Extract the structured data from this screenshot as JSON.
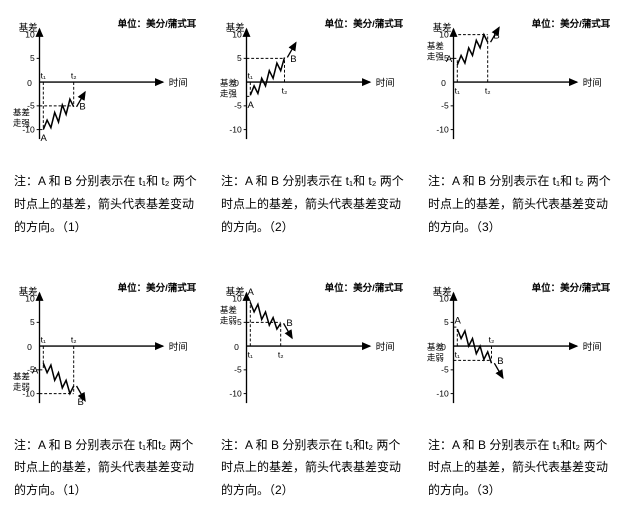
{
  "labels": {
    "unit": "单位：美分/蒲式耳",
    "yaxis": "基差",
    "xaxis": "时间",
    "strong": "基差走强",
    "weak": "基差走弱"
  },
  "axis": {
    "ticks": [
      10,
      5,
      0,
      -5,
      -10
    ],
    "tick_labels_top": [
      "10",
      "5"
    ],
    "tick_labels_bot": [
      "-5",
      "-10"
    ],
    "color": "#000000",
    "grid_color": "#000000",
    "background": "#ffffff",
    "font_size": 10,
    "unit_font_size": 10
  },
  "style": {
    "line_width": 1.6,
    "dash": "3 2",
    "arrow_size": 6
  },
  "charts": [
    {
      "id": "c1",
      "type": "line",
      "row": 0,
      "col": 0,
      "trend": "strong",
      "trend_label_side": "left-bottom",
      "A": {
        "t": 1,
        "y": -10,
        "label": "A",
        "label_pos": "below"
      },
      "B": {
        "t": 2,
        "y": -5,
        "label": "B",
        "label_pos": "right"
      },
      "t_labels": [
        "t₁",
        "t₂"
      ],
      "curve_points": [
        [
          34,
          118
        ],
        [
          38,
          108
        ],
        [
          42,
          116
        ],
        [
          46,
          100
        ],
        [
          50,
          110
        ],
        [
          54,
          92
        ],
        [
          58,
          102
        ],
        [
          62,
          86
        ],
        [
          66,
          94
        ]
      ],
      "arrow_angle": -60,
      "caption": "注：A 和 B 分别表示在 t₁和 t₂ 两个时点上的基差，箭头代表基差变动的方向。（1）"
    },
    {
      "id": "c2",
      "type": "line",
      "row": 0,
      "col": 1,
      "trend": "strong",
      "trend_label_side": "left-mid",
      "A": {
        "t": 1,
        "y": -3,
        "label": "A",
        "label_pos": "below"
      },
      "B": {
        "t": 2,
        "y": 5,
        "label": "B",
        "label_pos": "right"
      },
      "t_labels": [
        "t₁",
        "t₂"
      ],
      "curve_points": [
        [
          34,
          82
        ],
        [
          38,
          72
        ],
        [
          42,
          80
        ],
        [
          46,
          64
        ],
        [
          50,
          72
        ],
        [
          54,
          56
        ],
        [
          58,
          64
        ],
        [
          62,
          48
        ],
        [
          66,
          56
        ],
        [
          70,
          42
        ]
      ],
      "arrow_angle": -60,
      "caption": "注：A 和 B 分别表示在 t₁和 t₂ 两个时点上的基差，箭头代表基差变动的方向。（2）"
    },
    {
      "id": "c3",
      "type": "line",
      "row": 0,
      "col": 2,
      "trend": "strong",
      "trend_label_side": "left-top",
      "A": {
        "t": 1,
        "y": 5,
        "label": "A",
        "label_pos": "left"
      },
      "B": {
        "t": 2,
        "y": 10,
        "label": "B",
        "label_pos": "right"
      },
      "t_labels": [
        "t₁",
        "t₂"
      ],
      "curve_points": [
        [
          34,
          50
        ],
        [
          38,
          40
        ],
        [
          42,
          48
        ],
        [
          46,
          32
        ],
        [
          50,
          40
        ],
        [
          54,
          24
        ],
        [
          58,
          32
        ],
        [
          62,
          18
        ],
        [
          66,
          26
        ]
      ],
      "arrow_angle": -60,
      "caption": "注：A 和 B 分别表示在 t₁和 t₂ 两个时点上的基差，箭头代表基差变动的方向。（3）"
    },
    {
      "id": "c4",
      "type": "line",
      "row": 1,
      "col": 0,
      "trend": "weak",
      "trend_label_side": "left-bottom",
      "A": {
        "t": 1,
        "y": -5,
        "label": "A",
        "label_pos": "left"
      },
      "B": {
        "t": 2,
        "y": -10,
        "label": "B",
        "label_pos": "below-right"
      },
      "t_labels": [
        "t₁",
        "t₂"
      ],
      "curve_points": [
        [
          34,
          86
        ],
        [
          38,
          96
        ],
        [
          42,
          88
        ],
        [
          46,
          104
        ],
        [
          50,
          96
        ],
        [
          54,
          112
        ],
        [
          58,
          104
        ],
        [
          62,
          118
        ],
        [
          66,
          110
        ]
      ],
      "arrow_angle": 60,
      "caption": "注：A 和 B 分别表示在 t₁和t₂ 两个时点上的基差，箭头代表基差变动的方向。（1）"
    },
    {
      "id": "c5",
      "type": "line",
      "row": 1,
      "col": 1,
      "trend": "weak",
      "trend_label_side": "left-top",
      "A": {
        "t": 1,
        "y": 10,
        "label": "A",
        "label_pos": "above"
      },
      "B": {
        "t": 2,
        "y": 5,
        "label": "B",
        "label_pos": "right"
      },
      "t_labels": [
        "t₁",
        "t₂"
      ],
      "curve_points": [
        [
          34,
          22
        ],
        [
          38,
          32
        ],
        [
          42,
          24
        ],
        [
          46,
          40
        ],
        [
          50,
          32
        ],
        [
          54,
          46
        ],
        [
          58,
          38
        ],
        [
          62,
          50
        ],
        [
          66,
          44
        ]
      ],
      "arrow_angle": 60,
      "caption": "注：A 和 B 分别表示在 t₁和t₂ 两个时点上的基差，箭头代表基差变动的方向。（2）"
    },
    {
      "id": "c6",
      "type": "line",
      "row": 1,
      "col": 2,
      "trend": "weak",
      "trend_label_side": "left-mid",
      "A": {
        "t": 1,
        "y": 4,
        "label": "A",
        "label_pos": "above"
      },
      "B": {
        "t": 2,
        "y": -3,
        "label": "B",
        "label_pos": "right"
      },
      "t_labels": [
        "t₁",
        "t₂"
      ],
      "curve_points": [
        [
          34,
          50
        ],
        [
          38,
          60
        ],
        [
          42,
          52
        ],
        [
          46,
          68
        ],
        [
          50,
          60
        ],
        [
          54,
          76
        ],
        [
          58,
          68
        ],
        [
          62,
          82
        ],
        [
          66,
          74
        ],
        [
          70,
          86
        ]
      ],
      "arrow_angle": 60,
      "caption": "注：A 和 B 分别表示在 t₁和t₂ 两个时点上的基差，箭头代表基差变动的方向。（3）"
    }
  ]
}
